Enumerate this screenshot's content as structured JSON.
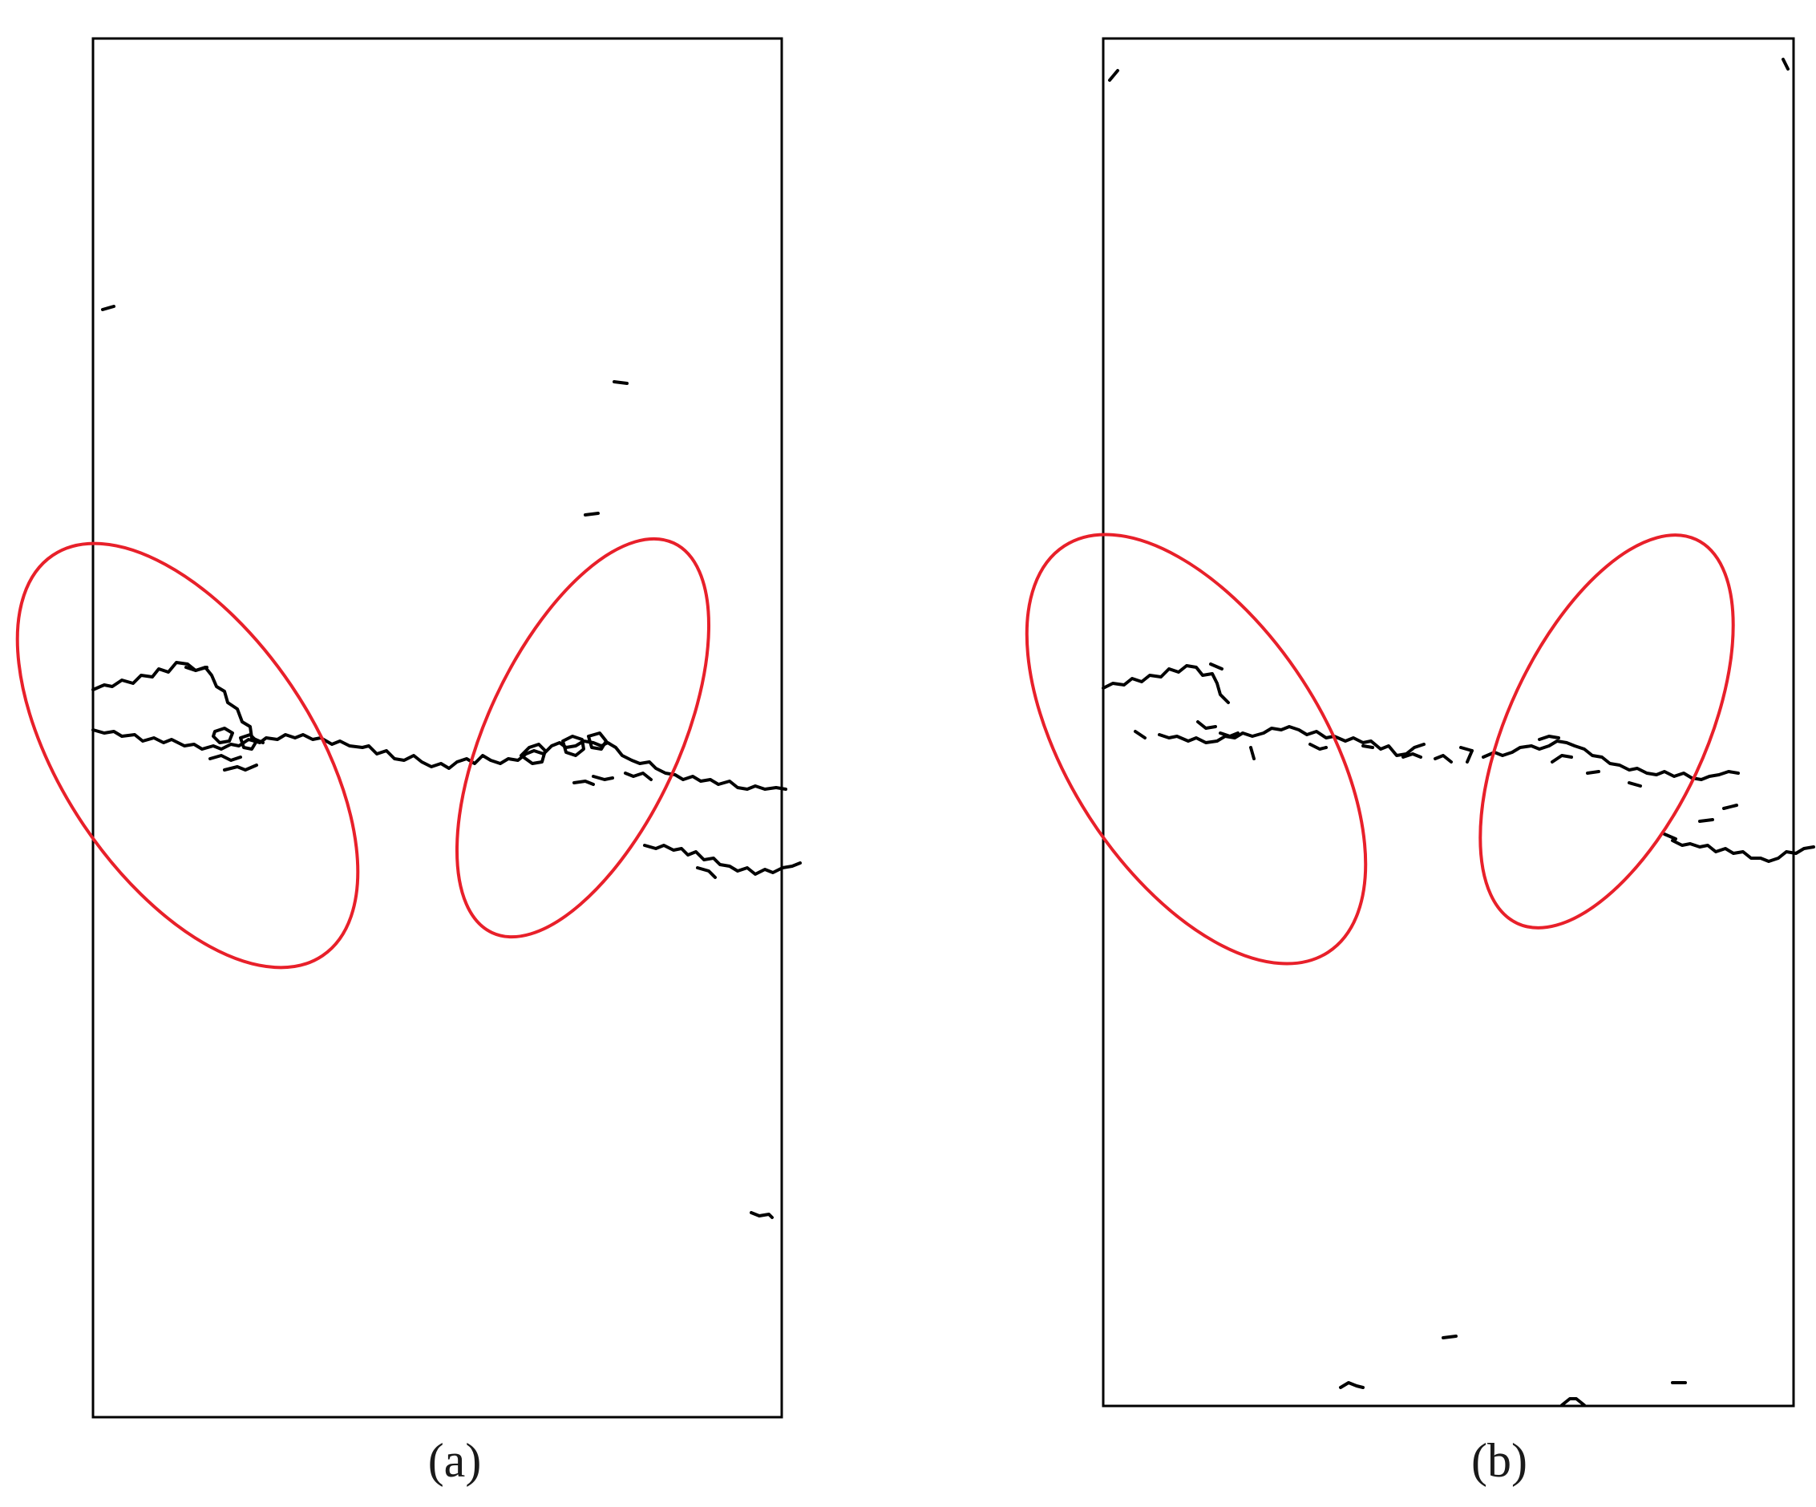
{
  "figure": {
    "panels": [
      {
        "id": "a",
        "caption": "(a)"
      },
      {
        "id": "b",
        "caption": "(b)"
      }
    ]
  },
  "colors": {
    "frame": "#000000",
    "crack": "#000000",
    "highlight_ellipse": "#e8202a",
    "caption": "#1a1a1a"
  }
}
